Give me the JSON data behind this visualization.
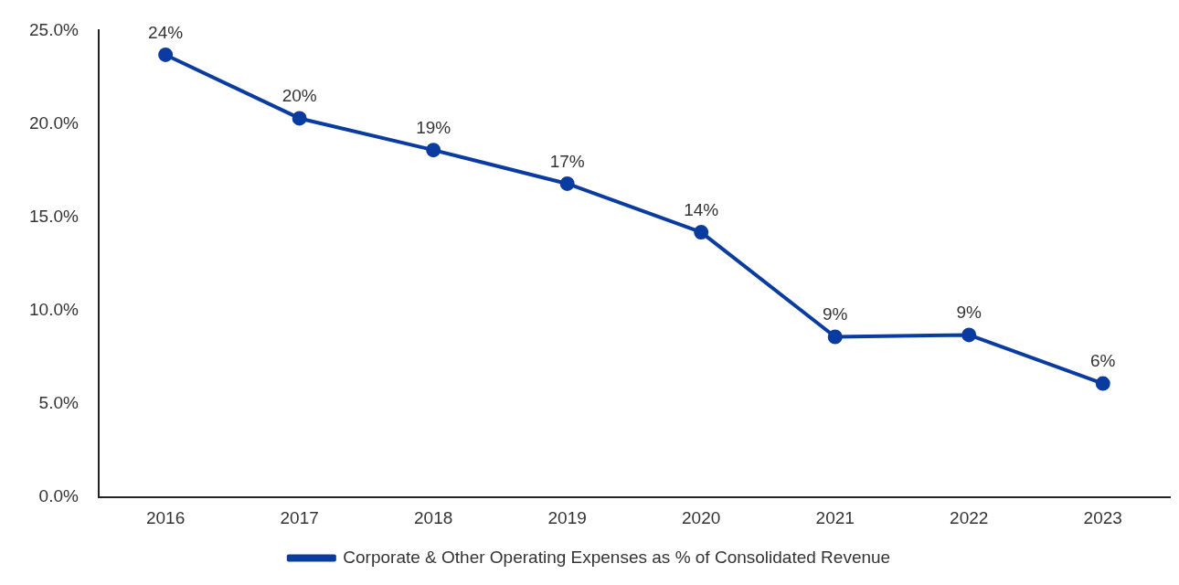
{
  "chart_data": {
    "type": "line",
    "categories": [
      "2016",
      "2017",
      "2018",
      "2019",
      "2020",
      "2021",
      "2022",
      "2023"
    ],
    "series": [
      {
        "name": "Corporate & Other Operating Expenses as % of Consolidated Revenue",
        "color": "#0a3ca0",
        "values": [
          23.7,
          20.3,
          18.6,
          16.8,
          14.2,
          8.6,
          8.7,
          6.1
        ],
        "value_labels": [
          "24%",
          "20%",
          "19%",
          "17%",
          "14%",
          "9%",
          "9%",
          "6%"
        ]
      }
    ],
    "ylim": [
      0,
      25
    ],
    "yticks": [
      {
        "value": 0,
        "label": "0.0%"
      },
      {
        "value": 5,
        "label": "5.0%"
      },
      {
        "value": 10,
        "label": "10.0%"
      },
      {
        "value": 15,
        "label": "15.0%"
      },
      {
        "value": 20,
        "label": "20.0%"
      },
      {
        "value": 25,
        "label": "25.0%"
      }
    ],
    "grid": false,
    "legend": "bottom",
    "marker": "circle",
    "line_style": "solid"
  }
}
